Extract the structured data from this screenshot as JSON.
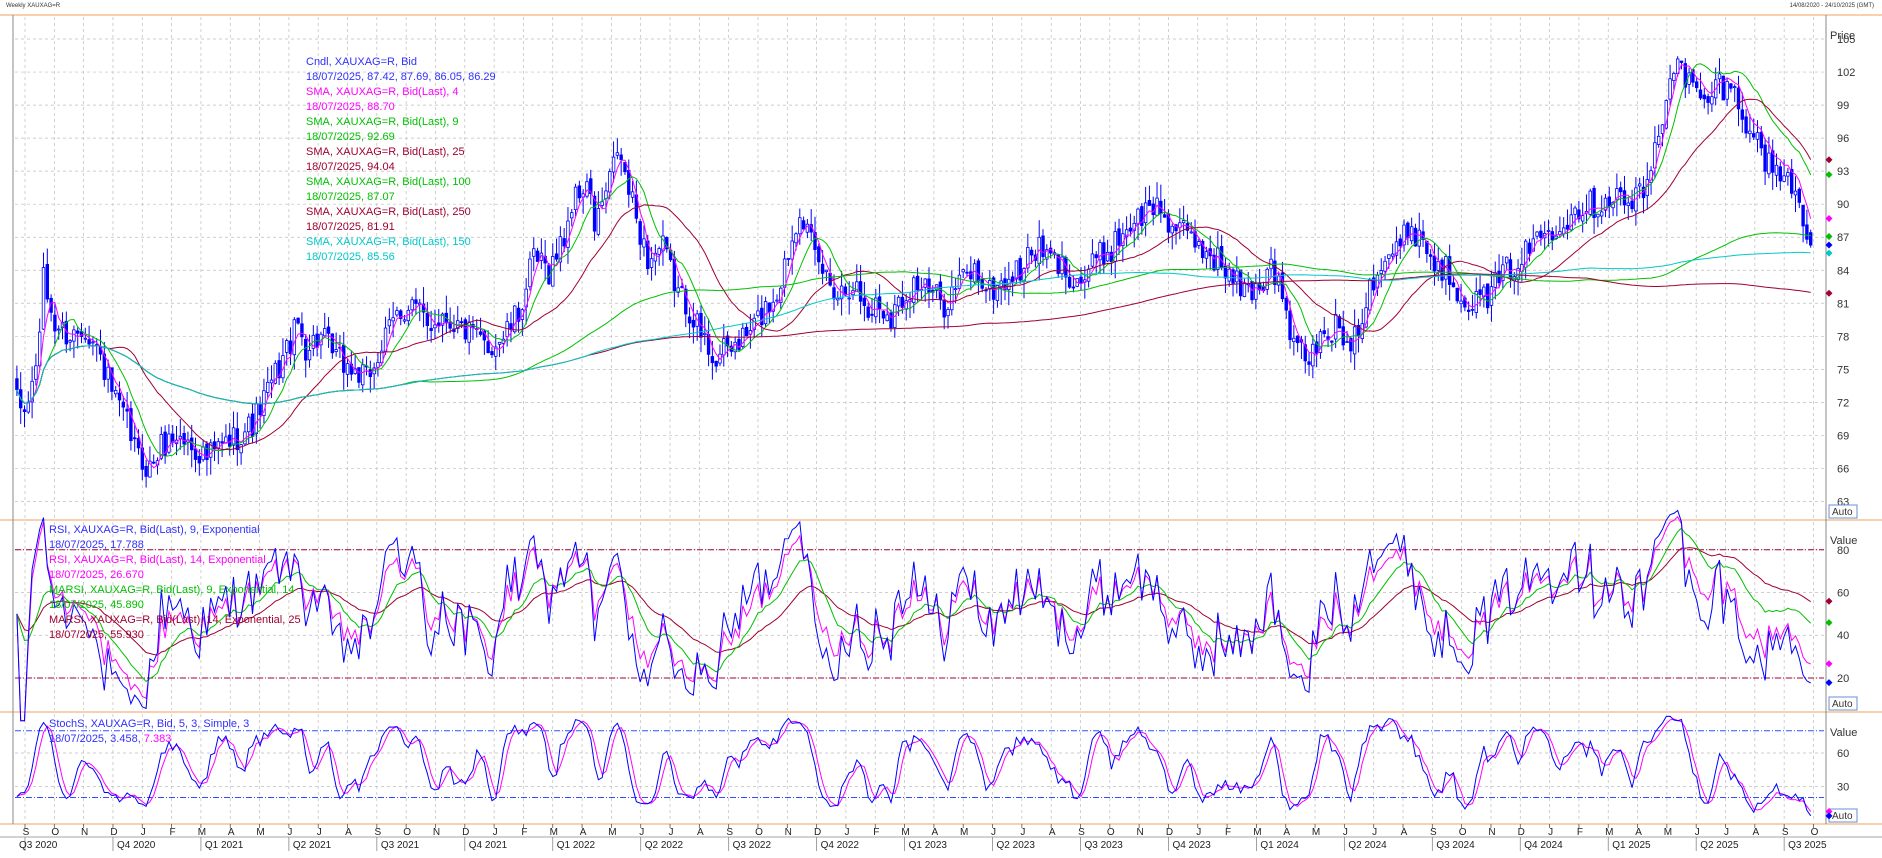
{
  "header": {
    "left": "Weekly XAUXAG=R",
    "right": "14/08/2020 - 24/10/2025 (GMT)"
  },
  "colors": {
    "candle_up": "#0000ff",
    "candle_down": "#0000ff",
    "sma4": "#ff00ff",
    "sma9": "#00c000",
    "sma25": "#a00030",
    "sma100": "#00c000",
    "sma250": "#a00030",
    "sma150": "#00c8c8",
    "rsi9": "#0000ff",
    "rsi14": "#ff00ff",
    "marsi9": "#00c000",
    "marsi14": "#a00030",
    "stoch_k": "#0000ff",
    "stoch_d": "#ff00ff",
    "grid": "#bdbdbd",
    "panel_border": "#f0a060",
    "level_line": "#a00030"
  },
  "chart_data": [
    {
      "type": "candlestick",
      "panel": "price",
      "ylabel": "Price",
      "ylim": [
        61.5,
        107
      ],
      "yticks": [
        63,
        66,
        69,
        72,
        75,
        78,
        81,
        84,
        87,
        90,
        93,
        96,
        99,
        102,
        105
      ],
      "scale_button": "Auto",
      "legend": [
        {
          "label": "Cndl, XAUXAG=R, Bid",
          "value": "18/07/2025, 87.42, 87.69, 86.05, 86.29",
          "color": "#3030ff"
        },
        {
          "label": "SMA, XAUXAG=R, Bid(Last),  4",
          "value": "18/07/2025, 88.70",
          "color": "#ff00ff"
        },
        {
          "label": "SMA, XAUXAG=R, Bid(Last),  9",
          "value": "18/07/2025, 92.69",
          "color": "#00c000"
        },
        {
          "label": "SMA, XAUXAG=R, Bid(Last),  25",
          "value": "18/07/2025, 94.04",
          "color": "#a00030"
        },
        {
          "label": "SMA, XAUXAG=R, Bid(Last),  100",
          "value": "18/07/2025, 87.07",
          "color": "#00c000"
        },
        {
          "label": "SMA, XAUXAG=R, Bid(Last),  250",
          "value": "18/07/2025, 81.91",
          "color": "#a00030"
        },
        {
          "label": "SMA, XAUXAG=R, Bid(Last),  150",
          "value": "18/07/2025, 85.56",
          "color": "#00c8c8"
        }
      ],
      "last_values": {
        "sma4": 88.7,
        "sma9": 92.69,
        "sma25": 94.04,
        "sma100": 87.07,
        "sma250": 81.91,
        "sma150": 85.56,
        "close": 86.29
      },
      "anchors": {
        "close": [
          [
            0,
            72
          ],
          [
            2,
            71
          ],
          [
            5,
            75
          ],
          [
            7,
            83
          ],
          [
            10,
            79
          ],
          [
            14,
            78
          ],
          [
            18,
            79
          ],
          [
            22,
            76
          ],
          [
            26,
            72
          ],
          [
            29,
            70
          ],
          [
            32,
            67
          ],
          [
            35,
            66
          ],
          [
            38,
            68
          ],
          [
            42,
            69
          ],
          [
            46,
            68
          ],
          [
            50,
            67
          ],
          [
            54,
            68
          ],
          [
            58,
            69
          ],
          [
            62,
            70
          ],
          [
            66,
            73
          ],
          [
            70,
            76
          ],
          [
            74,
            79
          ],
          [
            76,
            77
          ],
          [
            80,
            78
          ],
          [
            84,
            76
          ],
          [
            88,
            75
          ],
          [
            92,
            74
          ],
          [
            96,
            77
          ],
          [
            100,
            80
          ],
          [
            104,
            81
          ],
          [
            108,
            79
          ],
          [
            112,
            80
          ],
          [
            116,
            79
          ],
          [
            120,
            78
          ],
          [
            124,
            77
          ],
          [
            128,
            78
          ],
          [
            132,
            80
          ],
          [
            136,
            85
          ],
          [
            140,
            84
          ],
          [
            144,
            87
          ],
          [
            146,
            90
          ],
          [
            150,
            92
          ],
          [
            152,
            88
          ],
          [
            156,
            92
          ],
          [
            158,
            95
          ],
          [
            162,
            90
          ],
          [
            166,
            85
          ],
          [
            170,
            86
          ],
          [
            174,
            82
          ],
          [
            178,
            80
          ],
          [
            180,
            78
          ],
          [
            184,
            76
          ],
          [
            188,
            77
          ],
          [
            192,
            78
          ],
          [
            196,
            80
          ],
          [
            200,
            82
          ],
          [
            204,
            87
          ],
          [
            206,
            90
          ],
          [
            210,
            85
          ],
          [
            212,
            84
          ],
          [
            216,
            82
          ],
          [
            220,
            83
          ],
          [
            224,
            80
          ],
          [
            226,
            81
          ],
          [
            230,
            80
          ],
          [
            234,
            82
          ],
          [
            236,
            83
          ],
          [
            240,
            82
          ],
          [
            244,
            81
          ],
          [
            248,
            83
          ],
          [
            252,
            84
          ],
          [
            256,
            82
          ],
          [
            260,
            83
          ],
          [
            264,
            84
          ],
          [
            268,
            86
          ],
          [
            272,
            85
          ],
          [
            276,
            84
          ],
          [
            280,
            83
          ],
          [
            284,
            85
          ],
          [
            288,
            86
          ],
          [
            292,
            88
          ],
          [
            296,
            89
          ],
          [
            300,
            90
          ],
          [
            304,
            88
          ],
          [
            308,
            87
          ],
          [
            312,
            86
          ],
          [
            316,
            85
          ],
          [
            320,
            83
          ],
          [
            324,
            82
          ],
          [
            328,
            83
          ],
          [
            330,
            85
          ],
          [
            334,
            80
          ],
          [
            336,
            77
          ],
          [
            340,
            76
          ],
          [
            344,
            78
          ],
          [
            348,
            79
          ],
          [
            350,
            77
          ],
          [
            354,
            80
          ],
          [
            356,
            83
          ],
          [
            360,
            85
          ],
          [
            364,
            86
          ],
          [
            366,
            88
          ],
          [
            370,
            87
          ],
          [
            372,
            85
          ],
          [
            376,
            84
          ],
          [
            378,
            83
          ],
          [
            380,
            82
          ],
          [
            384,
            81
          ],
          [
            388,
            82
          ],
          [
            392,
            84
          ],
          [
            396,
            85
          ],
          [
            400,
            87
          ],
          [
            404,
            88
          ],
          [
            408,
            89
          ],
          [
            412,
            90
          ],
          [
            416,
            90
          ],
          [
            420,
            91
          ],
          [
            424,
            90
          ],
          [
            428,
            91
          ],
          [
            430,
            93
          ],
          [
            434,
            100
          ],
          [
            436,
            103
          ],
          [
            440,
            101
          ],
          [
            444,
            99
          ],
          [
            448,
            101
          ],
          [
            452,
            100
          ],
          [
            456,
            97
          ],
          [
            460,
            94
          ],
          [
            464,
            93
          ],
          [
            468,
            91
          ],
          [
            472,
            87
          ]
        ]
      }
    },
    {
      "type": "line",
      "panel": "rsi",
      "ylabel": "Value",
      "ylim": [
        5,
        93
      ],
      "yticks": [
        20,
        40,
        60,
        80
      ],
      "levels": [
        20,
        80
      ],
      "scale_button": "Auto",
      "legend": [
        {
          "label": "RSI, XAUXAG=R, Bid(Last),  9, Exponential",
          "value": "18/07/2025, 17.788",
          "color": "#3030ff"
        },
        {
          "label": "RSI, XAUXAG=R, Bid(Last),  14, Exponential",
          "value": "18/07/2025, 26.670",
          "color": "#ff00ff"
        },
        {
          "label": "MARSI, XAUXAG=R, Bid(Last),  9, Exponential, 14",
          "value": "18/07/2025, 45.890",
          "color": "#00c000"
        },
        {
          "label": "MARSI, XAUXAG=R, Bid(Last),  14, Exponential, 25",
          "value": "18/07/2025, 55.930",
          "color": "#a00030"
        }
      ],
      "last_values": {
        "rsi9": 17.788,
        "rsi14": 26.67,
        "marsi9": 45.89,
        "marsi14": 55.93
      }
    },
    {
      "type": "line",
      "panel": "stochastic",
      "ylabel": "Value",
      "ylim": [
        -2,
        95
      ],
      "yticks": [
        30,
        60
      ],
      "levels": [
        20,
        80
      ],
      "scale_button": "Auto",
      "legend": [
        {
          "label": "StochS, XAUXAG=R, Bid,  5, 3, Simple, 3",
          "value": "18/07/2025, 3.458,",
          "value2": "7.383",
          "color": "#3030ff"
        }
      ],
      "last_values": {
        "k": 3.458,
        "d": 7.383
      }
    }
  ],
  "xaxis": {
    "months": [
      "S",
      "O",
      "N",
      "D",
      "J",
      "F",
      "M",
      "A",
      "M",
      "J",
      "J",
      "A",
      "S",
      "O",
      "N",
      "D",
      "J",
      "F",
      "M",
      "A",
      "M",
      "J",
      "J",
      "A",
      "S",
      "O",
      "N",
      "D",
      "J",
      "F",
      "M",
      "A",
      "M",
      "J",
      "J",
      "A",
      "S",
      "O",
      "N",
      "D",
      "J",
      "F",
      "M",
      "A",
      "M",
      "J",
      "J",
      "A",
      "S",
      "O",
      "N",
      "D",
      "J",
      "F",
      "M",
      "A",
      "M",
      "J",
      "J",
      "A",
      "S",
      "O"
    ],
    "quarters": [
      "Q3 2020",
      "Q4 2020",
      "Q1 2021",
      "Q2 2021",
      "Q3 2021",
      "Q4 2021",
      "Q1 2022",
      "Q2 2022",
      "Q3 2022",
      "Q4 2022",
      "Q1 2023",
      "Q2 2023",
      "Q3 2023",
      "Q4 2023",
      "Q1 2024",
      "Q2 2024",
      "Q3 2024",
      "Q4 2024",
      "Q1 2025",
      "Q2 2025",
      "Q3 2025"
    ]
  }
}
